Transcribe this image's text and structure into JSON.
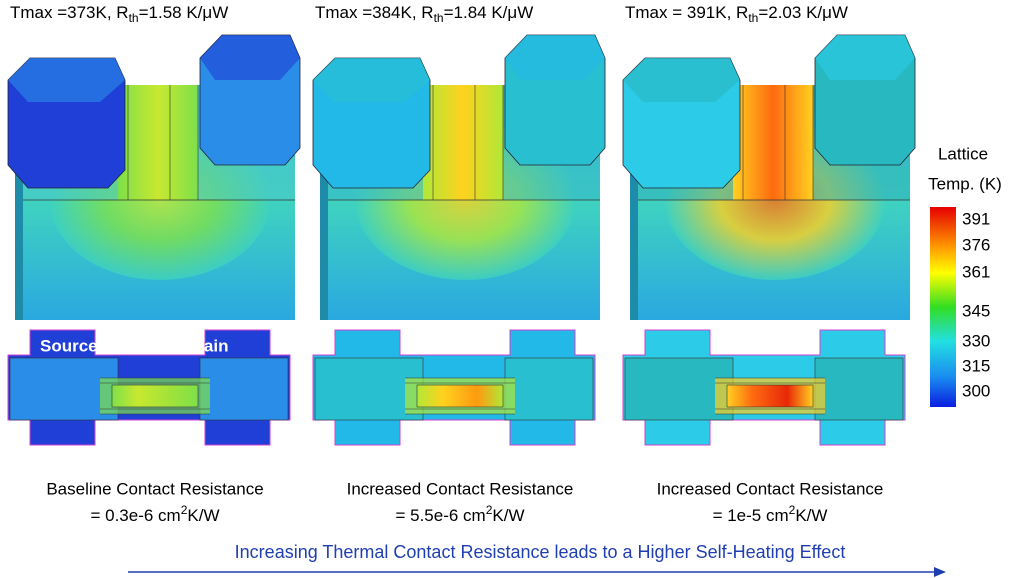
{
  "panels": [
    {
      "title": {
        "pre": "Tmax =373K, R",
        "sub": "th",
        "post": "=1.58 K/μW"
      },
      "caption": {
        "line1": "Baseline Contact Resistance",
        "pre": "= 0.3e-6 cm",
        "sup": "2",
        "post": "K/W"
      }
    },
    {
      "title": {
        "pre": "Tmax =384K, R",
        "sub": "th",
        "post": "=1.84 K/μW"
      },
      "caption": {
        "line1": "Increased Contact Resistance",
        "pre": "= 5.5e-6 cm",
        "sup": "2",
        "post": "K/W"
      }
    },
    {
      "title": {
        "pre": "Tmax = 391K, R",
        "sub": "th",
        "post": "=2.03 K/μW"
      },
      "caption": {
        "line1": "Increased Contact Resistance",
        "pre": "= 1e-5 cm",
        "sup": "2",
        "post": "K/W"
      }
    }
  ],
  "labels": {
    "source": "Source",
    "drain": "Drain"
  },
  "colorbar": {
    "title1": "Lattice",
    "title2": "Temp. (K)",
    "ticks": [
      "391",
      "376",
      "361",
      "345",
      "330",
      "315",
      "300"
    ]
  },
  "footer": "Increasing Thermal Contact Resistance leads to a Higher Self-Heating Effect"
}
